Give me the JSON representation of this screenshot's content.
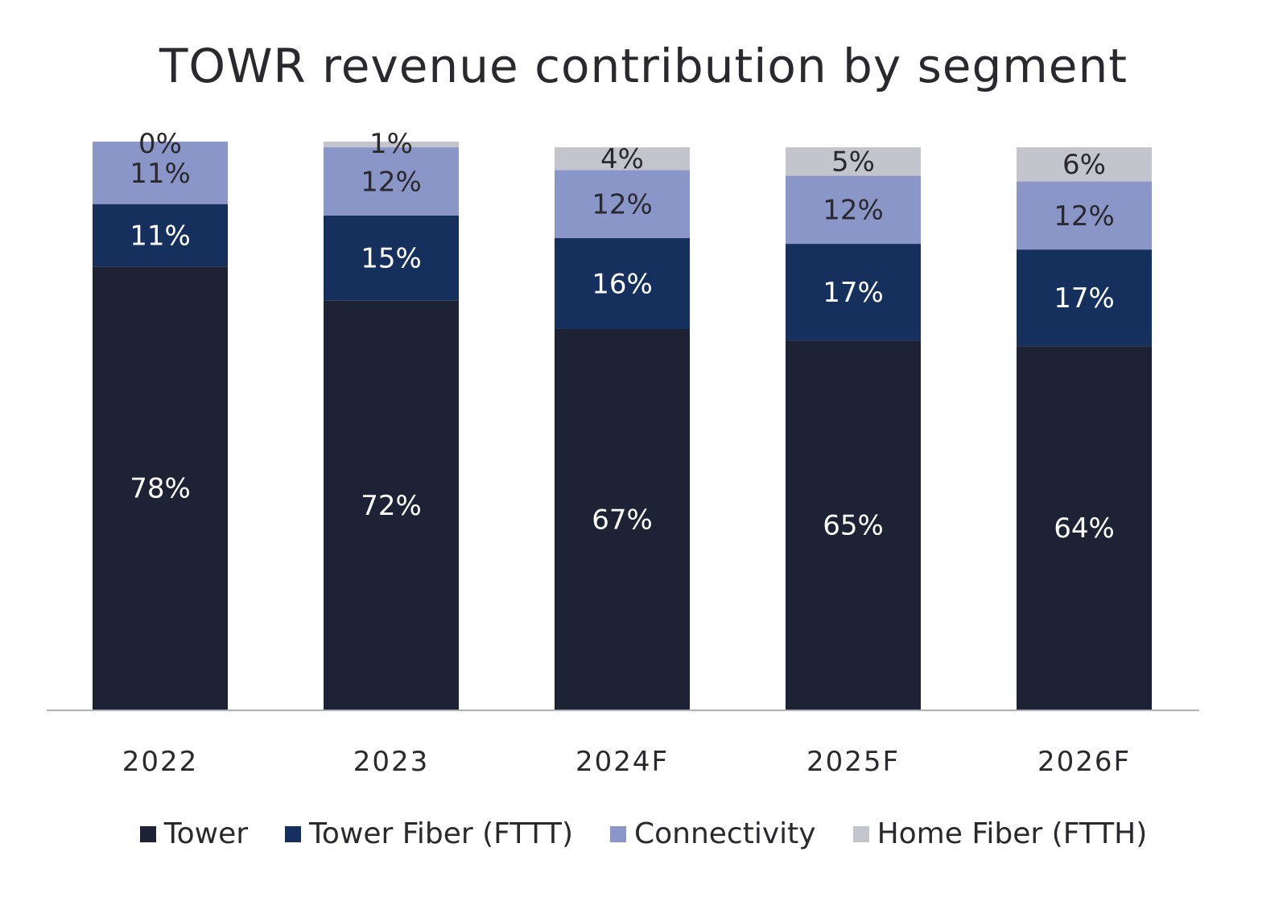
{
  "chart_data": {
    "type": "bar",
    "stacked": true,
    "title": "TOWR revenue contribution by segment",
    "categories": [
      "2022",
      "2023",
      "2024F",
      "2025F",
      "2026F"
    ],
    "series": [
      {
        "name": "Tower",
        "color": "#1e2235",
        "label_color": "#ffffff",
        "values": [
          78,
          72,
          67,
          65,
          64
        ],
        "labels": [
          "78%",
          "72%",
          "67%",
          "65%",
          "64%"
        ]
      },
      {
        "name": "Tower Fiber (FTTT)",
        "color": "#15305c",
        "label_color": "#ffffff",
        "values": [
          11,
          15,
          16,
          17,
          17
        ],
        "labels": [
          "11%",
          "15%",
          "16%",
          "17%",
          "17%"
        ]
      },
      {
        "name": "Connectivity",
        "color": "#8b96c8",
        "label_color": "#2a2a2e",
        "values": [
          11,
          12,
          12,
          12,
          12
        ],
        "labels": [
          "11%",
          "12%",
          "12%",
          "12%",
          "12%"
        ]
      },
      {
        "name": "Home Fiber (FTTH)",
        "color": "#c4c4cc",
        "label_color": "#2a2a2e",
        "values": [
          0,
          1,
          4,
          5,
          6
        ],
        "labels": [
          "0%",
          "1%",
          "4%",
          "5%",
          "6%"
        ]
      }
    ],
    "ylim": [
      0,
      100
    ],
    "legend_position": "bottom",
    "grid": false,
    "axis_color": "#b0b0b8"
  }
}
